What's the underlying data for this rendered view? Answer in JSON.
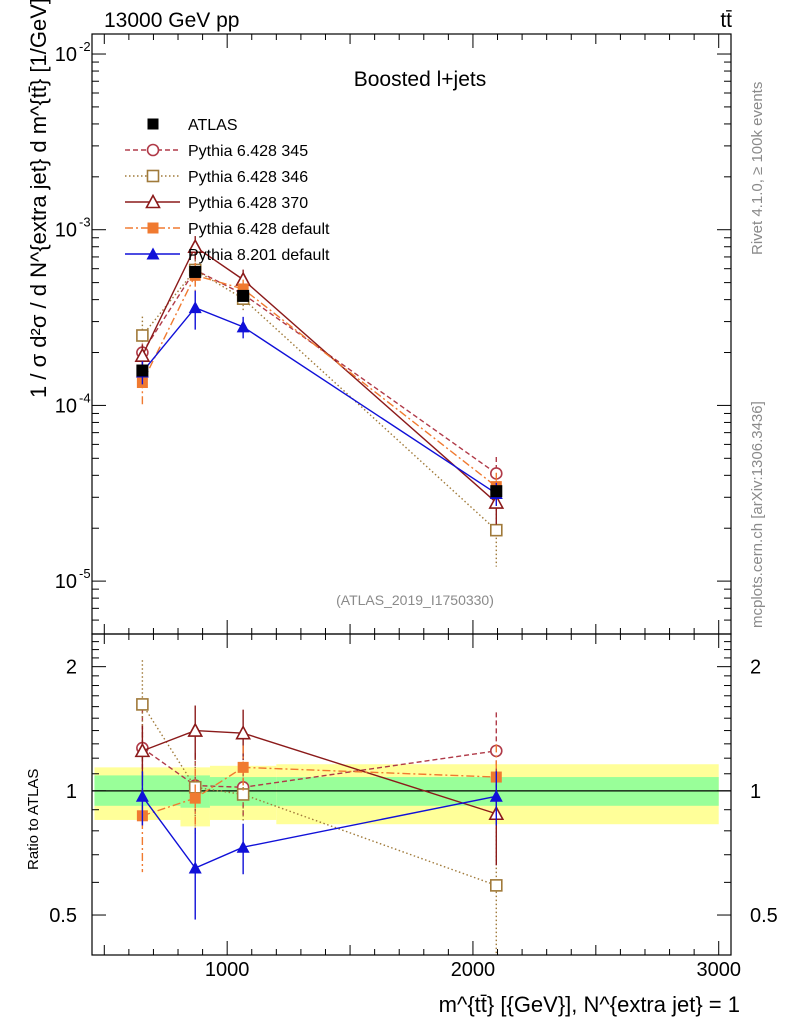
{
  "header": {
    "left": "13000 GeV pp",
    "right": "tt̄"
  },
  "side_labels": {
    "rivet": "Rivet 4.1.0, ≥ 100k events",
    "mcplots": "mcplots.cern.ch [arXiv:1306.3436]"
  },
  "chart_data": {
    "type": "line",
    "title": "Boosted l+jets",
    "watermark": "(ATLAS_2019_I1750330)",
    "xlabel": "m^{tt̄} [{GeV}], N^{extra jet} = 1",
    "ylabel": "1 / σ d²σ / d N^{extra jet} d m^{tt̄} [1/GeV]",
    "ratio_ylabel": "Ratio to ATLAS",
    "xlim": [
      450,
      3050
    ],
    "ylim": [
      5e-06,
      0.013
    ],
    "ratio_ylim": [
      0.4,
      2.4
    ],
    "yscale": "log",
    "ratio_yscale": "log",
    "x_ticks": [
      1000,
      2000,
      3000
    ],
    "x_tick_labels": [
      "1000",
      "2000",
      "3000"
    ],
    "main_y_ticks": [
      1e-05,
      0.0001,
      0.001,
      0.01
    ],
    "ratio_y_ticks": [
      0.5,
      1,
      2
    ],
    "ratio_y_tick_labels": [
      "0.5",
      "1",
      "2"
    ],
    "legend_position": "top-left",
    "x": [
      655,
      870,
      1065,
      2095
    ],
    "bins": [
      [
        460,
        810
      ],
      [
        810,
        930
      ],
      [
        930,
        1200
      ],
      [
        1200,
        3000
      ]
    ],
    "band_inner": [
      [
        0.92,
        1.09
      ],
      [
        0.91,
        1.09
      ],
      [
        0.92,
        1.08
      ],
      [
        0.92,
        1.08
      ]
    ],
    "band_outer": [
      [
        0.85,
        1.14
      ],
      [
        0.82,
        1.14
      ],
      [
        0.85,
        1.15
      ],
      [
        0.83,
        1.16
      ]
    ],
    "series": [
      {
        "name": "ATLAS",
        "color": "#000000",
        "dash": "",
        "marker": "square-filled",
        "values": [
          0.000158,
          0.000575,
          0.00042,
          3.25e-05
        ],
        "ratio": [
          1.0,
          1.0,
          1.0,
          1.0
        ],
        "err": [
          0,
          0,
          0,
          0
        ],
        "ratio_err": [
          0,
          0,
          0,
          0
        ]
      },
      {
        "name": "Pythia 6.428 345",
        "color": "#b03a48",
        "dash": "5,3",
        "marker": "circle-open",
        "values": [
          0.0002,
          0.00059,
          0.00043,
          4.1e-05
        ],
        "ratio": [
          1.27,
          1.03,
          1.02,
          1.25
        ],
        "err": [
          0.25,
          0.2,
          0.15,
          0.24
        ],
        "ratio_err": [
          0.25,
          0.2,
          0.15,
          0.24
        ]
      },
      {
        "name": "Pythia 6.428 346",
        "color": "#a07a3a",
        "dash": "1.5,2.5",
        "marker": "square-open",
        "values": [
          0.00025,
          0.00059,
          0.000405,
          1.95e-05
        ],
        "ratio": [
          1.62,
          1.02,
          0.98,
          0.59
        ],
        "err": [
          0.28,
          0.2,
          0.14,
          0.38
        ],
        "ratio_err": [
          0.28,
          0.2,
          0.14,
          0.38
        ]
      },
      {
        "name": "Pythia 6.428 370",
        "color": "#8b1a1a",
        "dash": "",
        "marker": "triangle-open",
        "values": [
          0.000192,
          0.0008,
          0.00052,
          2.8e-05
        ],
        "ratio": [
          1.25,
          1.4,
          1.38,
          0.88
        ],
        "err": [
          0.15,
          0.15,
          0.14,
          0.25
        ],
        "ratio_err": [
          0.15,
          0.15,
          0.14,
          0.25
        ]
      },
      {
        "name": "Pythia 6.428 default",
        "color": "#f07a30",
        "dash": "8,3,2,3",
        "marker": "square-filled",
        "values": [
          0.000135,
          0.00055,
          0.00046,
          3.45e-05
        ],
        "ratio": [
          0.87,
          0.96,
          1.14,
          1.08
        ],
        "err": [
          0.27,
          0.18,
          0.13,
          0.2
        ],
        "ratio_err": [
          0.27,
          0.18,
          0.13,
          0.2
        ]
      },
      {
        "name": "Pythia 8.201 default",
        "color": "#1010d8",
        "dash": "",
        "marker": "triangle-filled",
        "values": [
          0.000155,
          0.00036,
          0.00028,
          3.15e-05
        ],
        "ratio": [
          0.97,
          0.65,
          0.73,
          0.97
        ],
        "err": [
          0.15,
          0.25,
          0.14,
          0.15
        ],
        "ratio_err": [
          0.15,
          0.25,
          0.14,
          0.15
        ]
      }
    ]
  }
}
